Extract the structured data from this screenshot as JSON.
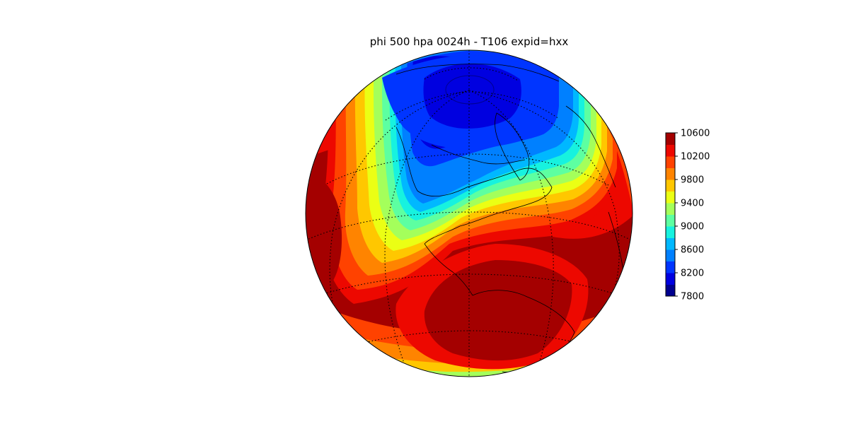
{
  "title": "phi 500 hpa 0024h - T106 expid=hxx",
  "colorbar": {
    "ticks": [
      "10600",
      "10200",
      "9800",
      "9400",
      "9000",
      "8600",
      "8200",
      "7800"
    ],
    "range": [
      7800,
      10600
    ],
    "levels": [
      7800,
      8000,
      8200,
      8400,
      8600,
      8800,
      9000,
      9200,
      9400,
      9600,
      9800,
      10000,
      10200,
      10400,
      10600
    ],
    "colors": [
      "#00008f",
      "#0000e0",
      "#0035ff",
      "#0080ff",
      "#00b8ff",
      "#17f2df",
      "#5dffa1",
      "#a4ff5b",
      "#ebff14",
      "#ffc700",
      "#ff8400",
      "#ff4200",
      "#ed0800",
      "#a40000"
    ]
  }
}
